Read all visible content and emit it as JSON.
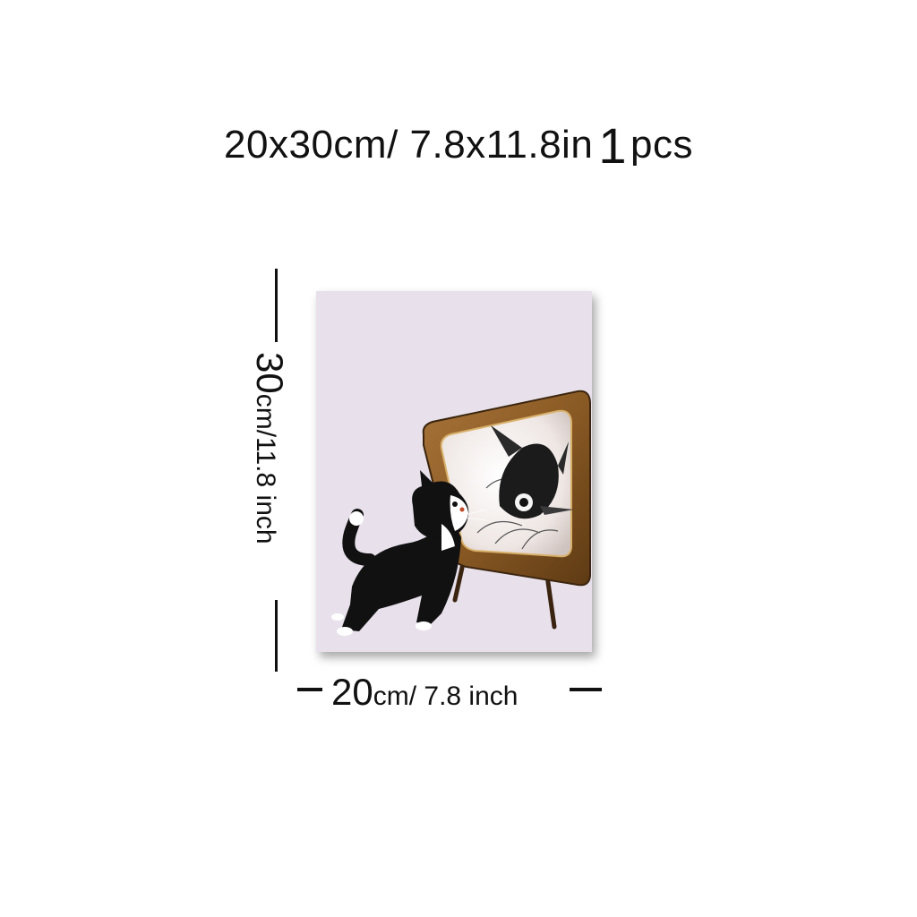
{
  "headline": {
    "size_text": "20x30cm/ 7.8x11.8in",
    "quantity_number": "1",
    "quantity_unit": "pcs"
  },
  "height_dimension": {
    "value": "30",
    "unit_text": "cm/11.8 inch"
  },
  "width_dimension": {
    "value": "20",
    "unit_text": "cm/ 7.8 inch"
  },
  "colors": {
    "poster_background": "#e8e1ec",
    "tv_frame": "#8a5a24",
    "screen": "#f2ecea",
    "ink": "#111111"
  }
}
